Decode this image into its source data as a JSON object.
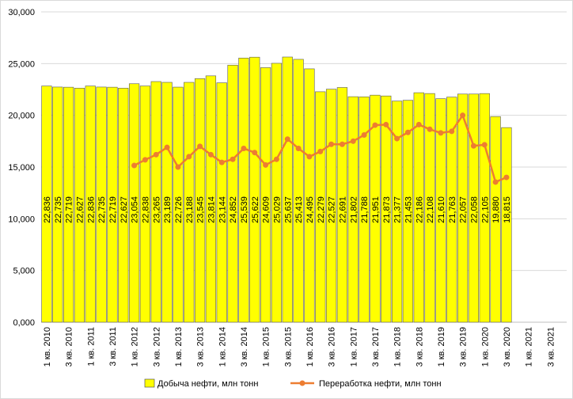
{
  "chart_data": {
    "type": "bar",
    "categories": [
      "1 кв. 2010",
      null,
      "3 кв. 2010",
      null,
      "1 кв. 2011",
      null,
      "3 кв. 2011",
      null,
      "1 кв. 2012",
      null,
      "3 кв. 2012",
      null,
      "1 кв. 2013",
      null,
      "3 кв. 2013",
      null,
      "1 кв. 2014",
      null,
      "3 кв. 2014",
      null,
      "1 кв. 2015",
      null,
      "3 кв. 2015",
      null,
      "1 кв. 2016",
      null,
      "3 кв. 2016",
      null,
      "1 кв. 2017",
      null,
      "3 кв. 2017",
      null,
      "1 кв. 2018",
      null,
      "3 кв. 2018",
      null,
      "1 кв. 2019",
      null,
      "3 кв. 2019",
      null,
      "1 кв. 2020",
      null,
      "3 кв. 2020",
      null,
      "1 кв. 2021",
      null,
      "3 кв. 2021",
      null
    ],
    "series": [
      {
        "name": "Добыча нефти, млн тонн",
        "type": "bar",
        "color": "#ffff00",
        "values": [
          22.836,
          22.735,
          22.719,
          22.627,
          22.836,
          22.735,
          22.719,
          22.627,
          23.054,
          22.838,
          23.265,
          23.189,
          22.726,
          23.188,
          23.545,
          23.814,
          23.144,
          24.852,
          25.539,
          25.622,
          24.609,
          25.029,
          25.637,
          25.413,
          24.495,
          22.279,
          22.527,
          22.691,
          21.802,
          21.788,
          21.951,
          21.873,
          21.377,
          21.453,
          22.186,
          22.108,
          21.61,
          21.763,
          22.057,
          22.058,
          22.105,
          19.88,
          18.815,
          null,
          null,
          null,
          null,
          null
        ],
        "value_labels": [
          "22,836",
          "22,735",
          "22,719",
          "22,627",
          "22,836",
          "22,735",
          "22,719",
          "22,627",
          "23,054",
          "22,838",
          "23,265",
          "23,189",
          "22,726",
          "23,188",
          "23,545",
          "23,814",
          "23,144",
          "24,852",
          "25,539",
          "25,622",
          "24,609",
          "25,029",
          "25,637",
          "25,413",
          "24,495",
          "22,279",
          "22,527",
          "22,691",
          "21,802",
          "21,788",
          "21,951",
          "21,873",
          "21,377",
          "21,453",
          "22,186",
          "22,108",
          "21,610",
          "21,763",
          "22,057",
          "22,058",
          "22,105",
          "19,880",
          "18,815",
          null,
          null,
          null,
          null,
          null
        ]
      },
      {
        "name": "Переработка нефти, млн тонн",
        "type": "line",
        "color": "#ed7d31",
        "values": [
          null,
          null,
          null,
          null,
          null,
          null,
          null,
          null,
          15.15,
          15.7,
          16.2,
          16.9,
          15.0,
          16.0,
          17.0,
          16.2,
          15.45,
          15.75,
          16.8,
          16.4,
          15.2,
          15.75,
          17.7,
          16.8,
          16.0,
          16.5,
          17.2,
          17.2,
          17.5,
          18.1,
          19.05,
          19.1,
          17.75,
          18.35,
          19.1,
          18.65,
          18.3,
          18.45,
          20.0,
          17.05,
          17.15,
          13.55,
          14.0,
          null,
          null,
          null,
          null,
          null
        ]
      }
    ],
    "ylim": [
      0,
      30
    ],
    "yticks": [
      {
        "value": 0,
        "label": "0,000"
      },
      {
        "value": 5,
        "label": "5,000"
      },
      {
        "value": 10,
        "label": "10,000"
      },
      {
        "value": 15,
        "label": "15,000"
      },
      {
        "value": 20,
        "label": "20,000"
      },
      {
        "value": 25,
        "label": "25,000"
      },
      {
        "value": 30,
        "label": "30,000"
      }
    ],
    "grid": true,
    "legend": "bottom"
  }
}
